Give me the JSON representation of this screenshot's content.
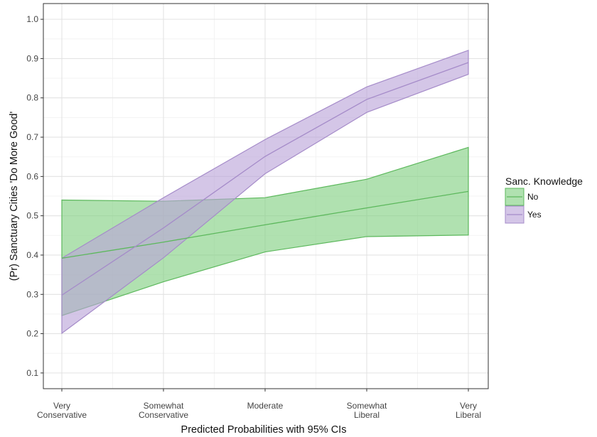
{
  "chart_data": {
    "type": "line",
    "title": "",
    "xlabel": "Predicted Probabilities with 95% CIs",
    "ylabel": "(Pr) Sanctuary Cities 'Do More Good'",
    "categories": [
      [
        "Very",
        "Conservative"
      ],
      [
        "Somewhat",
        "Conservative"
      ],
      [
        "Moderate"
      ],
      [
        "Somewhat",
        "Liberal"
      ],
      [
        "Very",
        "Liberal"
      ]
    ],
    "ylim": [
      0.06,
      1.04
    ],
    "yticks": [
      0.1,
      0.2,
      0.3,
      0.4,
      0.5,
      0.6,
      0.7,
      0.8,
      0.9,
      1.0
    ],
    "ytick_labels": [
      "0.1",
      "0.2",
      "0.3",
      "0.4",
      "0.5",
      "0.6",
      "0.7",
      "0.8",
      "0.9",
      "1.0"
    ],
    "grid": true,
    "legend": {
      "title": "Sanc. Knowledge",
      "position": "right"
    },
    "series": [
      {
        "name": "No",
        "line_color": "#5cb85c",
        "fill_color": "#7fcf7f",
        "values": [
          0.392,
          0.433,
          0.477,
          0.52,
          0.562
        ],
        "lower": [
          0.246,
          0.332,
          0.408,
          0.447,
          0.451
        ],
        "upper": [
          0.54,
          0.537,
          0.546,
          0.593,
          0.674
        ]
      },
      {
        "name": "Yes",
        "line_color": "#a58bc9",
        "fill_color": "#b9a3d9",
        "values": [
          0.298,
          0.469,
          0.651,
          0.796,
          0.89
        ],
        "lower": [
          0.201,
          0.393,
          0.607,
          0.763,
          0.86
        ],
        "upper": [
          0.392,
          0.546,
          0.694,
          0.828,
          0.921
        ]
      }
    ]
  }
}
